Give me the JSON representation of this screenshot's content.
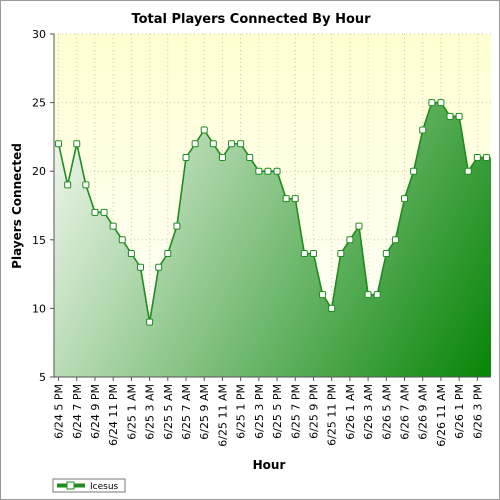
{
  "chart_data": {
    "type": "area",
    "title": "Total Players Connected By Hour",
    "xlabel": "Hour",
    "ylabel": "Players Connected",
    "ylim": [
      5,
      30
    ],
    "yticks": [
      5,
      10,
      15,
      20,
      25,
      30
    ],
    "x": [
      "6/24 5 PM",
      "6/24 6 PM",
      "6/24 7 PM",
      "6/24 8 PM",
      "6/24 9 PM",
      "6/24 10 PM",
      "6/24 11 PM",
      "6/25 12 AM",
      "6/25 1 AM",
      "6/25 2 AM",
      "6/25 3 AM",
      "6/25 4 AM",
      "6/25 5 AM",
      "6/25 6 AM",
      "6/25 7 AM",
      "6/25 8 AM",
      "6/25 9 AM",
      "6/25 10 AM",
      "6/25 11 AM",
      "6/25 12 PM",
      "6/25 1 PM",
      "6/25 2 PM",
      "6/25 3 PM",
      "6/25 4 PM",
      "6/25 5 PM",
      "6/25 6 PM",
      "6/25 7 PM",
      "6/25 8 PM",
      "6/25 9 PM",
      "6/25 10 PM",
      "6/25 11 PM",
      "6/26 12 AM",
      "6/26 1 AM",
      "6/26 2 AM",
      "6/26 3 AM",
      "6/26 4 AM",
      "6/26 5 AM",
      "6/26 6 AM",
      "6/26 7 AM",
      "6/26 8 AM",
      "6/26 9 AM",
      "6/26 10 AM",
      "6/26 11 AM",
      "6/26 12 PM",
      "6/26 1 PM",
      "6/26 2 PM",
      "6/26 3 PM",
      "6/26 4 PM"
    ],
    "xtick_labels": [
      "6/24 5 PM",
      "6/24 7 PM",
      "6/24 9 PM",
      "6/24 11 PM",
      "6/25 1 AM",
      "6/25 3 AM",
      "6/25 5 AM",
      "6/25 7 AM",
      "6/25 9 AM",
      "6/25 11 AM",
      "6/25 1 PM",
      "6/25 3 PM",
      "6/25 5 PM",
      "6/25 7 PM",
      "6/25 9 PM",
      "6/25 11 PM",
      "6/26 1 AM",
      "6/26 3 AM",
      "6/26 5 AM",
      "6/26 7 AM",
      "6/26 9 AM",
      "6/26 11 AM",
      "6/26 1 PM",
      "6/26 3 PM"
    ],
    "series": [
      {
        "name": "Icesus",
        "values": [
          22,
          19,
          22,
          19,
          17,
          17,
          16,
          15,
          14,
          13,
          9,
          13,
          14,
          16,
          21,
          22,
          23,
          22,
          21,
          22,
          22,
          21,
          20,
          20,
          20,
          18,
          18,
          14,
          14,
          11,
          10,
          14,
          15,
          16,
          11,
          11,
          14,
          15,
          18,
          20,
          23,
          25,
          25,
          24,
          24,
          20,
          21,
          21
        ]
      }
    ],
    "grid": true,
    "legend": "bottom-left",
    "colors": {
      "line": "#1e8c1e",
      "fill_light": "#e8f3e4",
      "fill_dark": "#0a860a",
      "plot_bg_top": "#ffffd2",
      "plot_bg_bottom": "#ffffff",
      "marker_fill": "#ffffff"
    }
  }
}
